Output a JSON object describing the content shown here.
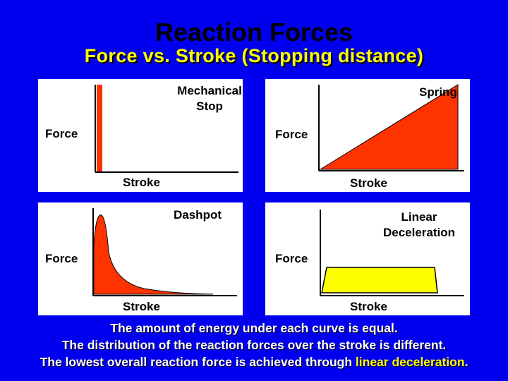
{
  "title": "Reaction Forces",
  "subtitle": "Force vs. Stroke (Stopping distance)",
  "panels": [
    {
      "name": "Mechanical Stop",
      "title_lines": [
        "Mechanical",
        "Stop"
      ],
      "y_label": "Force",
      "x_label": "Stroke",
      "fill_color": "#ff3300"
    },
    {
      "name": "Spring",
      "title_lines": [
        "Spring"
      ],
      "y_label": "Force",
      "x_label": "Stroke",
      "fill_color": "#ff3300"
    },
    {
      "name": "Dashpot",
      "title_lines": [
        "Dashpot"
      ],
      "y_label": "Force",
      "x_label": "Stroke",
      "fill_color": "#ff3300"
    },
    {
      "name": "Linear Deceleration",
      "title_lines": [
        "Linear",
        "Deceleration"
      ],
      "y_label": "Force",
      "x_label": "Stroke",
      "fill_color": "#ffff00"
    }
  ],
  "footer": {
    "line1": "The amount of energy under each curve is equal.",
    "line2": "The distribution of the reaction forces over the stroke is different.",
    "line3_prefix": "The lowest overall reaction force is achieved through ",
    "line3_highlight": "linear deceleration",
    "line3_suffix": "."
  },
  "colors": {
    "background": "#0000ee",
    "panel": "#ffffff",
    "axis": "#000000",
    "curve_fill": "#ff3300",
    "linear_fill": "#ffff00",
    "highlight_text": "#ffff00",
    "subtitle_text": "#ffff00"
  }
}
